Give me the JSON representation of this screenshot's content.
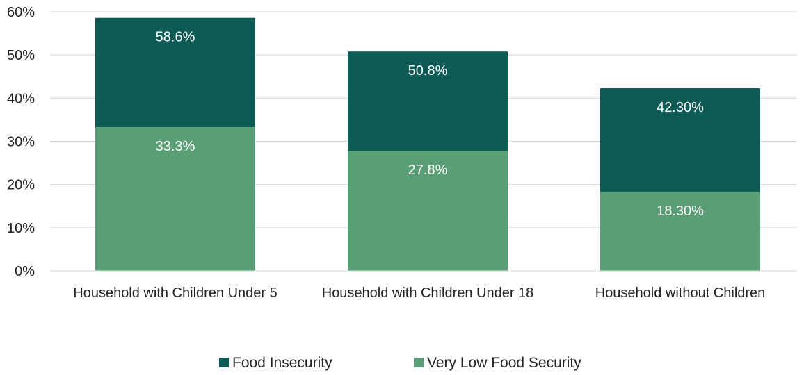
{
  "chart_data": {
    "type": "bar",
    "stacked": false,
    "categories": [
      "Household with Children Under 5",
      "Household with Children Under 18",
      "Household without Children"
    ],
    "series": [
      {
        "name": "Food Insecurity",
        "values": [
          58.6,
          50.8,
          42.3
        ],
        "labels": [
          "58.6%",
          "50.8%",
          "42.30%"
        ],
        "color": "#0e5b55"
      },
      {
        "name": "Very Low Food Security",
        "values": [
          33.3,
          27.8,
          18.3
        ],
        "labels": [
          "33.3%",
          "27.8%",
          "18.30%"
        ],
        "color": "#5a9e76"
      }
    ],
    "ylim": [
      0,
      60
    ],
    "yticks": [
      "0%",
      "10%",
      "20%",
      "30%",
      "40%",
      "50%",
      "60%"
    ],
    "grid": true,
    "legend_position": "bottom-center"
  }
}
